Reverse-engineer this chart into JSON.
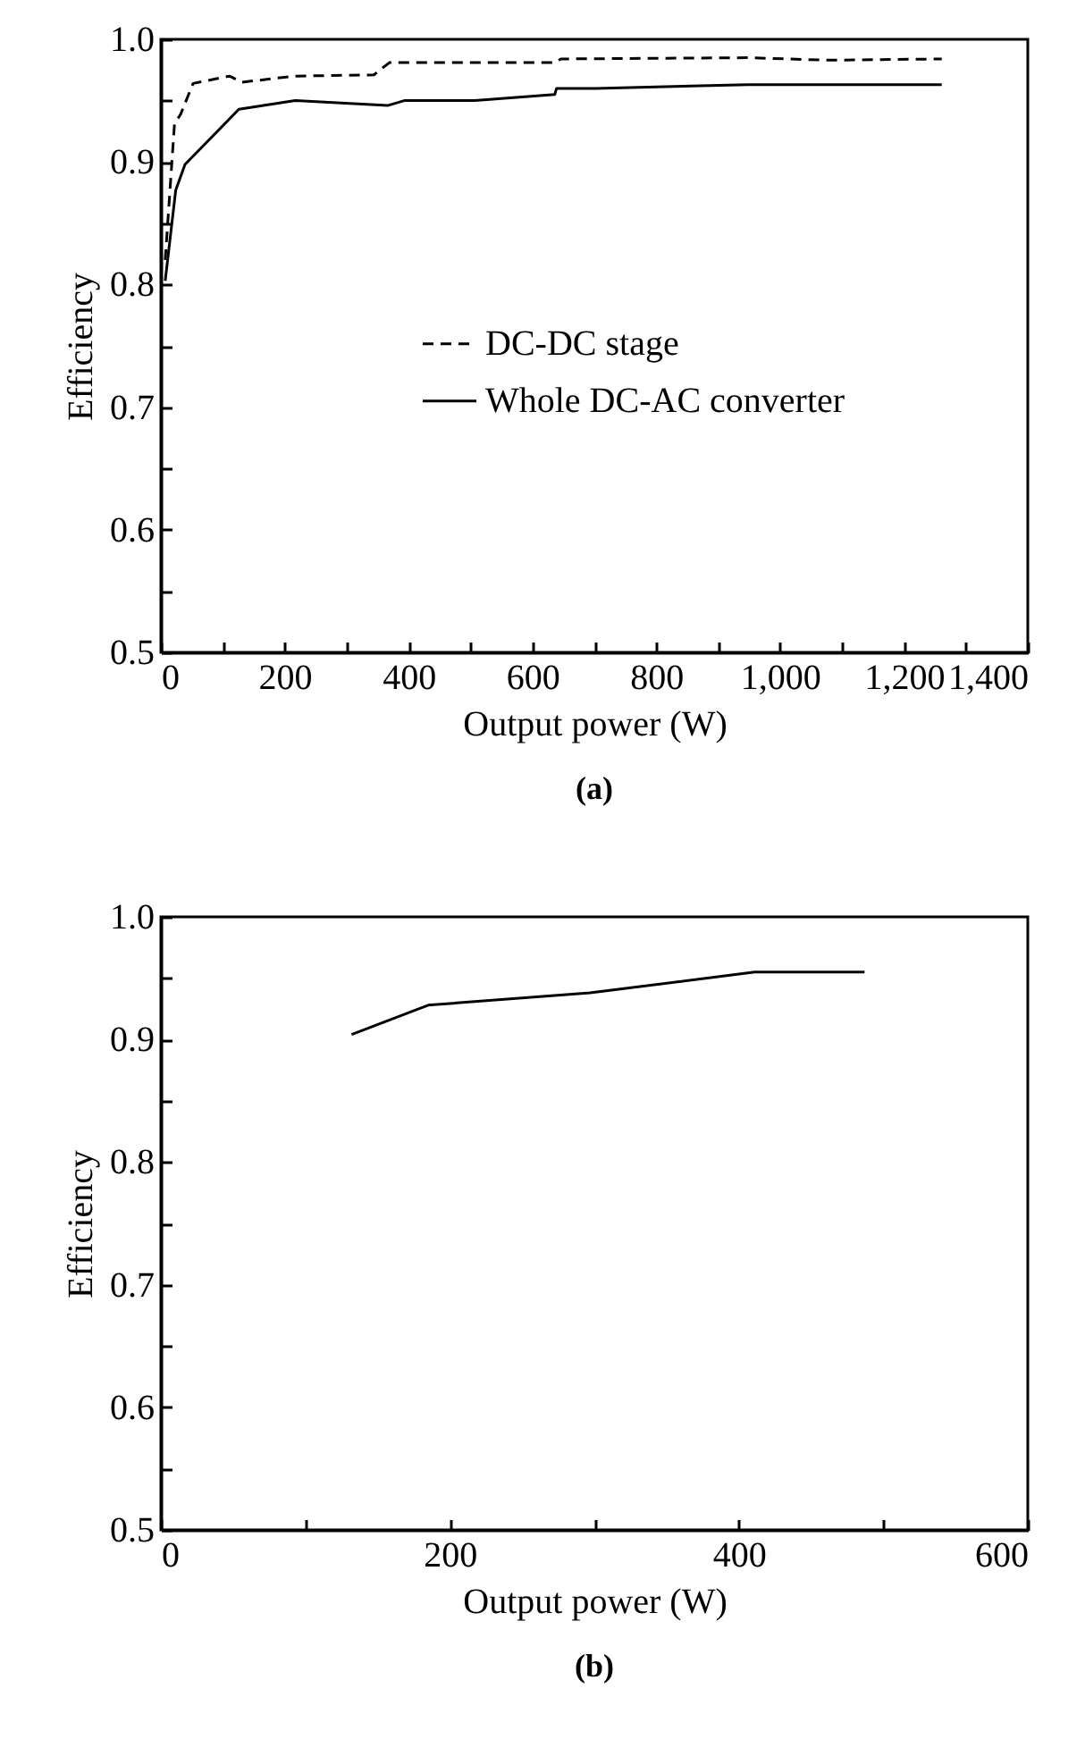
{
  "chart_data": [
    {
      "type": "line",
      "xlabel": "Output power (W)",
      "ylabel": "Efficiency",
      "annotations": [
        "(a)"
      ],
      "legend": "center",
      "xlim": [
        0,
        1400
      ],
      "ylim": [
        0.5,
        1.0
      ],
      "xticks": [
        0,
        {
          "value": 100,
          "label": null
        },
        200,
        {
          "value": 300,
          "label": null
        },
        400,
        {
          "value": 500,
          "label": null
        },
        600,
        {
          "value": 700,
          "label": null
        },
        800,
        {
          "value": 900,
          "label": null
        },
        {
          "value": 1000,
          "label": "1,000"
        },
        {
          "value": 1100,
          "label": null
        },
        {
          "value": 1200,
          "label": "1,200"
        },
        {
          "value": 1300,
          "label": null
        },
        {
          "value": 1400,
          "label": "1,400"
        }
      ],
      "yticks": [
        0.5,
        {
          "value": 0.55,
          "label": null
        },
        0.6,
        {
          "value": 0.65,
          "label": null
        },
        0.7,
        {
          "value": 0.75,
          "label": null
        },
        0.8,
        {
          "value": 0.85,
          "label": null
        },
        0.9,
        {
          "value": 0.95,
          "label": null
        },
        {
          "value": 1.0,
          "label": "1.0"
        }
      ],
      "series": [
        {
          "name": "DC-DC stage",
          "color": "#000000",
          "line_style": "dashed",
          "x": [
            7,
            22,
            32,
            52,
            111,
            131,
            215,
            344,
            369,
            636,
            646,
            948,
            1077,
            1261
          ],
          "values": [
            0.82,
            0.931,
            0.939,
            0.964,
            0.97,
            0.965,
            0.97,
            0.971,
            0.981,
            0.981,
            0.984,
            0.985,
            0.983,
            0.984
          ]
        },
        {
          "name": "Whole DC-AC converter",
          "color": "#000000",
          "line_style": "solid",
          "x": [
            7,
            24,
            39,
            126,
            217,
            366,
            393,
            507,
            636,
            639,
            701,
            948,
            1261
          ],
          "values": [
            0.803,
            0.877,
            0.898,
            0.943,
            0.95,
            0.946,
            0.95,
            0.95,
            0.955,
            0.96,
            0.96,
            0.963,
            0.963
          ]
        }
      ]
    },
    {
      "type": "line",
      "xlabel": "Output power (W)",
      "ylabel": "Efficiency",
      "annotations": [
        "(b)"
      ],
      "xlim": [
        0,
        600
      ],
      "ylim": [
        0.5,
        1.0
      ],
      "xticks": [
        0,
        {
          "value": 100,
          "label": null
        },
        200,
        {
          "value": 300,
          "label": null
        },
        400,
        {
          "value": 500,
          "label": null
        },
        600
      ],
      "yticks": [
        0.5,
        {
          "value": 0.55,
          "label": null
        },
        0.6,
        {
          "value": 0.65,
          "label": null
        },
        0.7,
        {
          "value": 0.75,
          "label": null
        },
        0.8,
        {
          "value": 0.85,
          "label": null
        },
        0.9,
        {
          "value": 0.95,
          "label": null
        },
        {
          "value": 1.0,
          "label": "1.0"
        }
      ],
      "series": [
        {
          "color": "#000000",
          "line_style": "solid",
          "x": [
            132,
            185,
            297,
            411,
            487
          ],
          "values": [
            0.904,
            0.928,
            0.938,
            0.955,
            0.955
          ]
        }
      ]
    }
  ]
}
